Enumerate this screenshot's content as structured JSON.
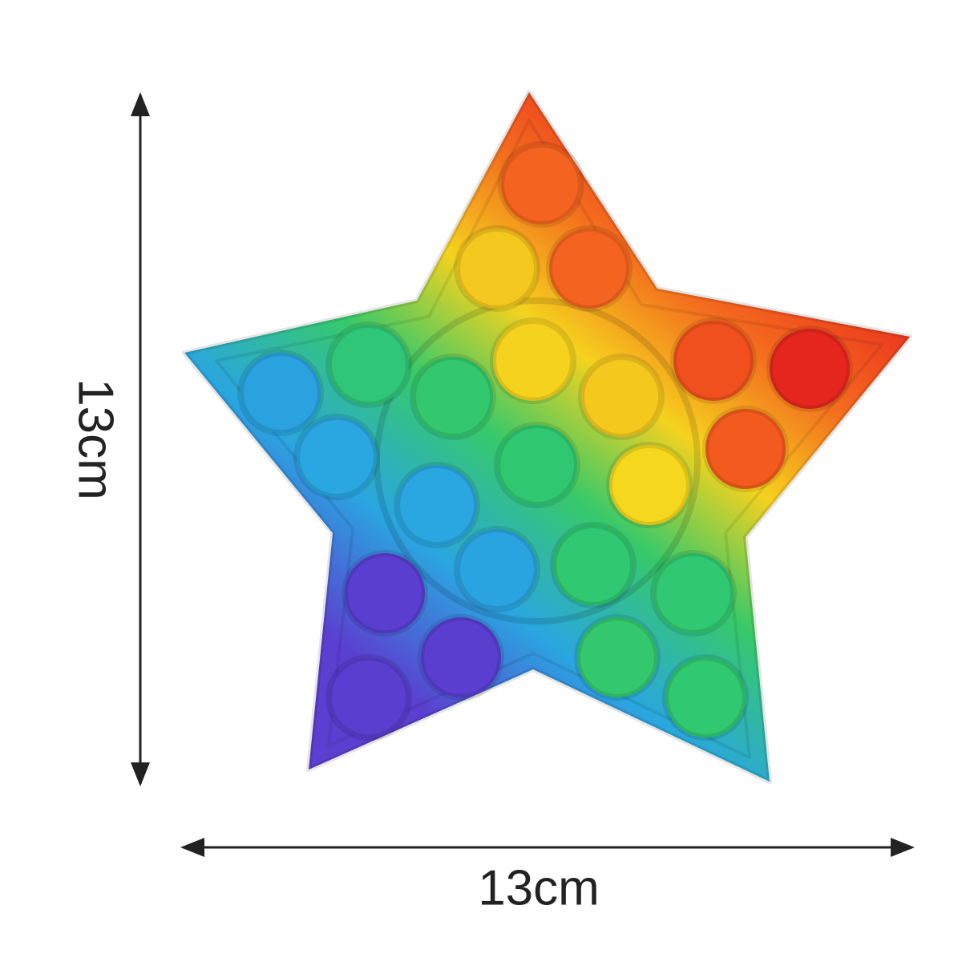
{
  "dimensions": {
    "height": {
      "label": "13cm"
    },
    "width": {
      "label": "13cm"
    }
  }
}
